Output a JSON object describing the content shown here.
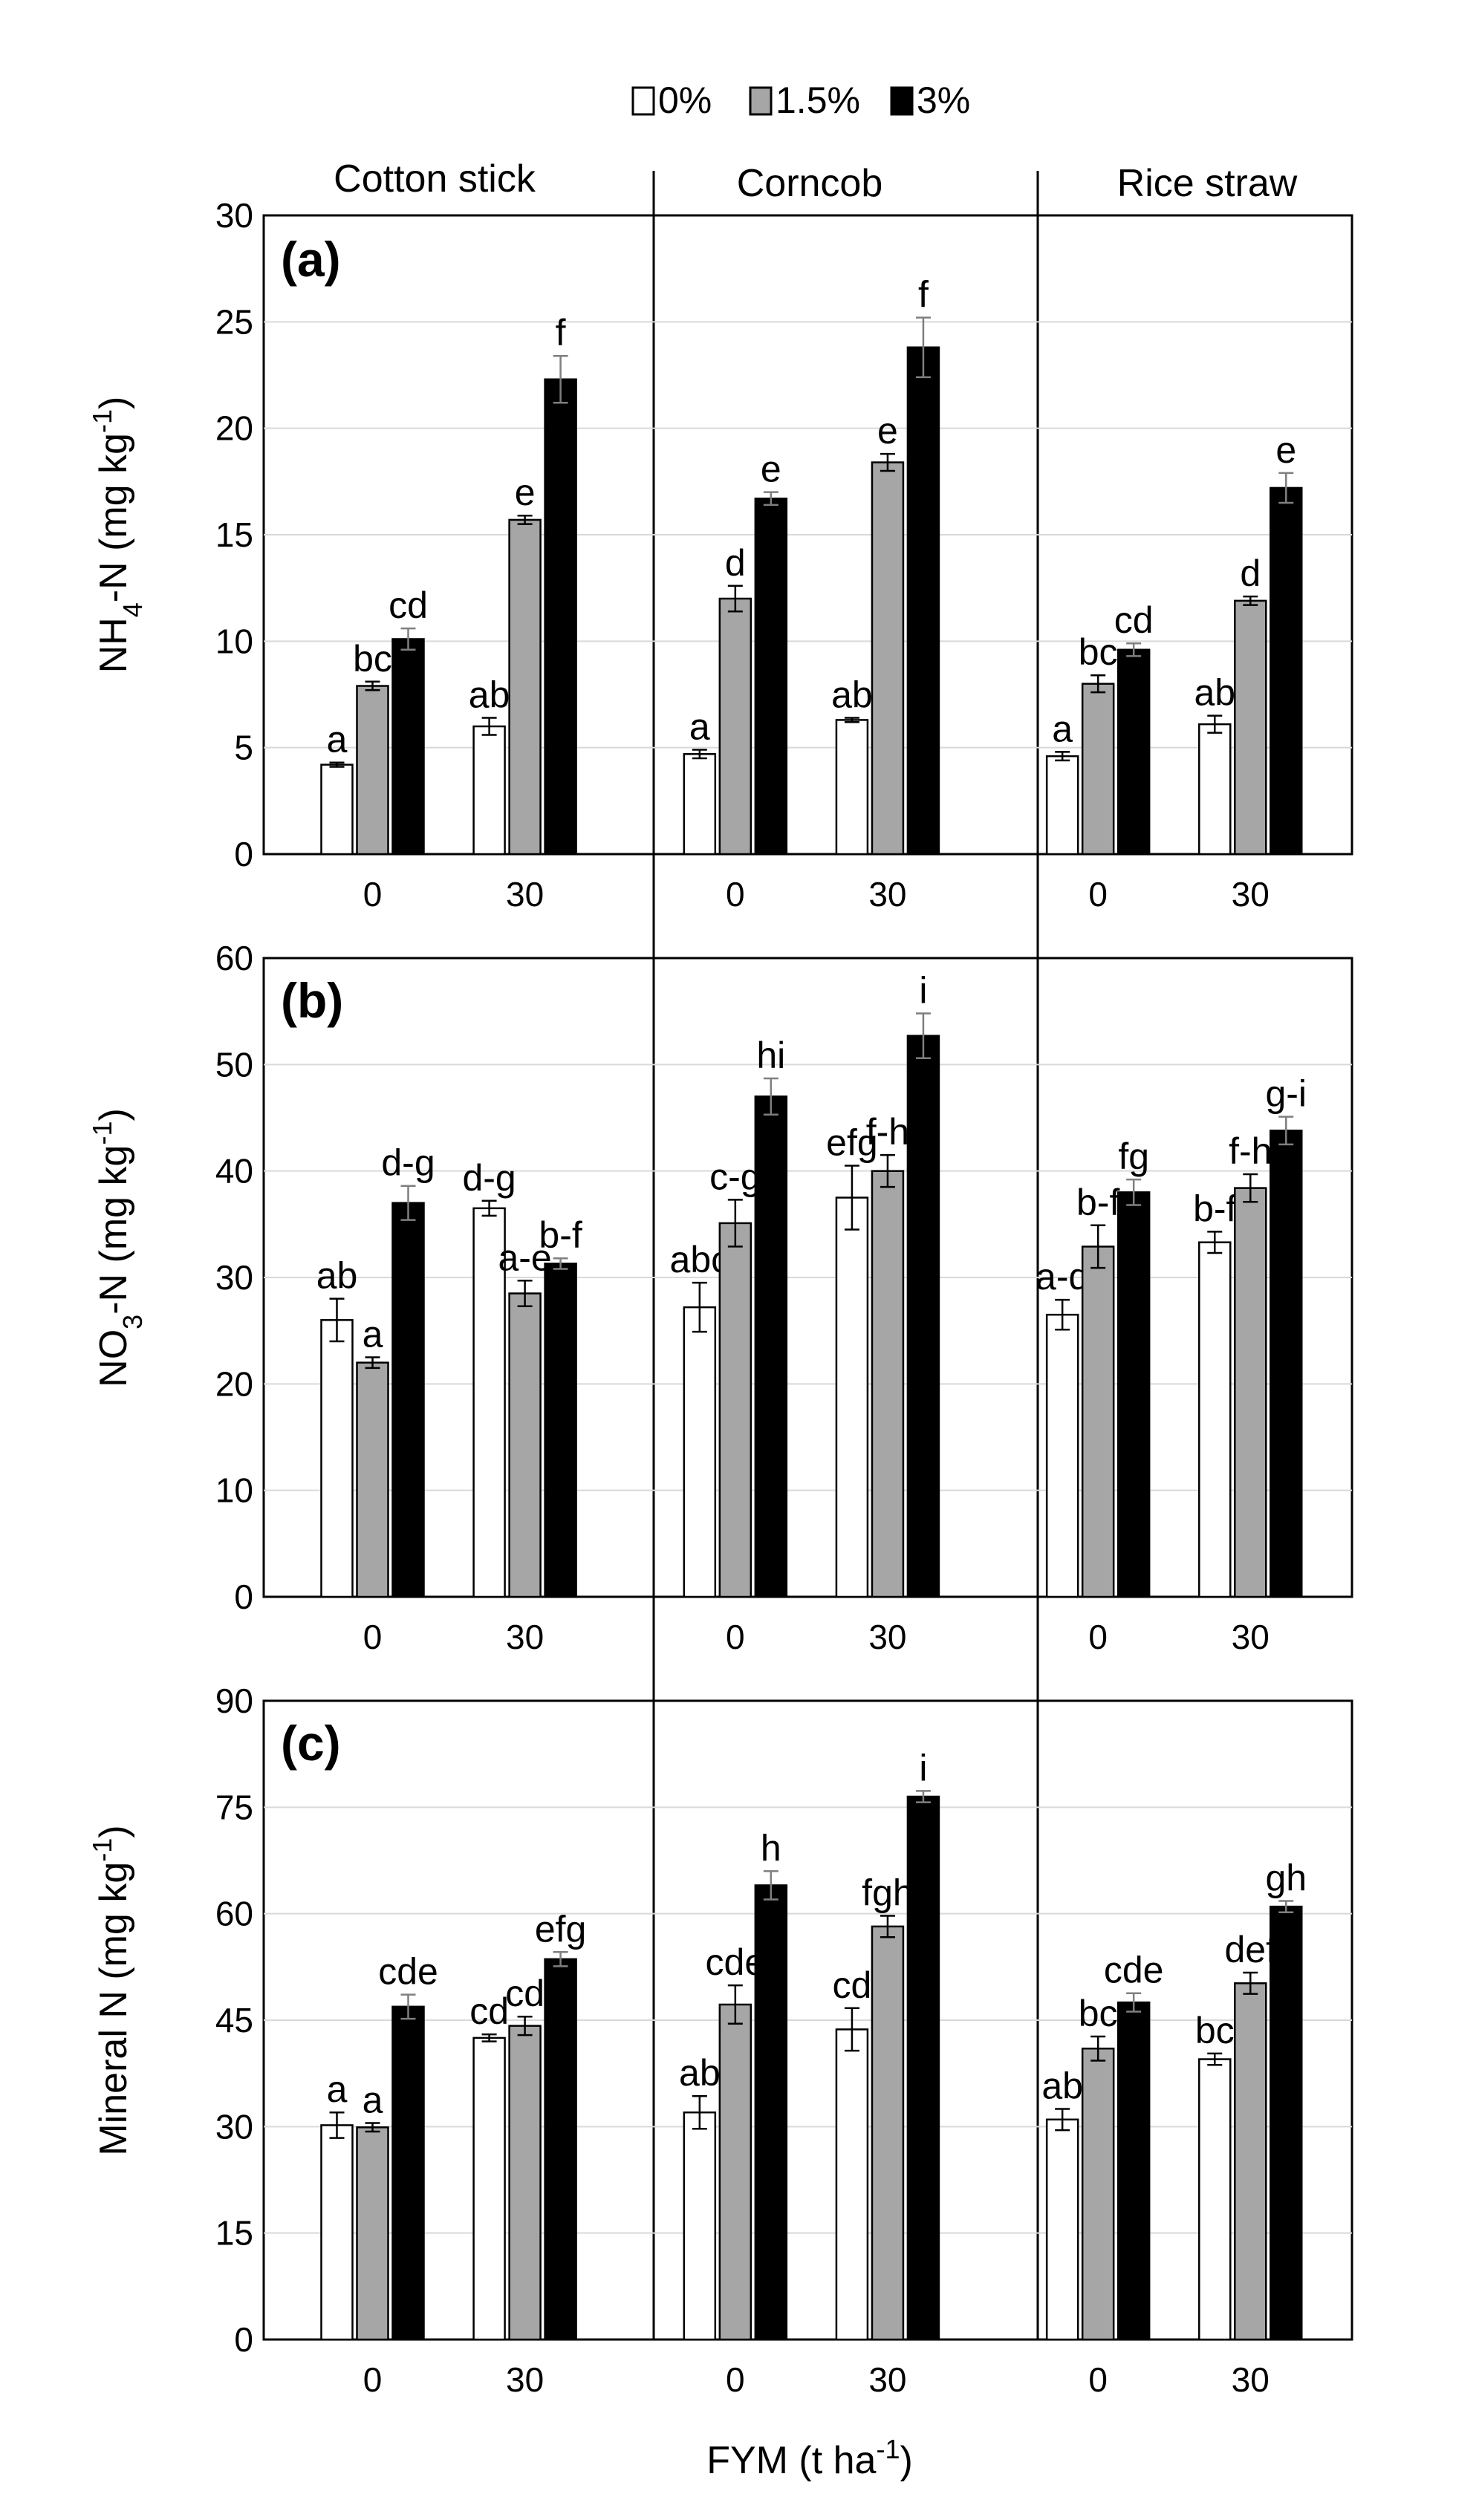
{
  "chart_data": {
    "type": "bar",
    "residue_columns": [
      "Cotton stick",
      "Corncob",
      "Rice straw"
    ],
    "fym_levels": [
      "0",
      "30"
    ],
    "xlabel": "FYM (t ha",
    "xlabel_sup": "-1",
    "xlabel_end": ")",
    "legend": [
      {
        "key": "s0",
        "label": "0%",
        "color": "#ffffff"
      },
      {
        "key": "s15",
        "label": "1.5%",
        "color": "#a6a6a6"
      },
      {
        "key": "s3",
        "label": "3%",
        "color": "#000000"
      }
    ],
    "panels": [
      {
        "id": "a",
        "letter": "(a)",
        "ylabel": {
          "pre": "NH",
          "sub": "4",
          "mid": "-N (mg kg",
          "sup": "-1",
          "post": ")"
        },
        "ylim": [
          0,
          30
        ],
        "yticks": [
          0,
          5,
          10,
          15,
          20,
          25,
          30
        ],
        "bars": [
          {
            "col": 0,
            "fym": 0,
            "s0": 4.2,
            "s15": 7.9,
            "s3": 10.1,
            "err": [
              0.1,
              0.2,
              0.5
            ],
            "labels": [
              "a",
              "bc",
              "cd"
            ]
          },
          {
            "col": 0,
            "fym": 1,
            "s0": 6.0,
            "s15": 15.7,
            "s3": 22.3,
            "err": [
              0.4,
              0.2,
              1.1
            ],
            "labels": [
              "ab",
              "e",
              "f"
            ]
          },
          {
            "col": 1,
            "fym": 0,
            "s0": 4.7,
            "s15": 12.0,
            "s3": 16.7,
            "err": [
              0.2,
              0.6,
              0.3
            ],
            "labels": [
              "a",
              "d",
              "e"
            ]
          },
          {
            "col": 1,
            "fym": 1,
            "s0": 6.3,
            "s15": 18.4,
            "s3": 23.8,
            "err": [
              0.1,
              0.4,
              1.4
            ],
            "labels": [
              "ab",
              "e",
              "f"
            ]
          },
          {
            "col": 2,
            "fym": 0,
            "s0": 4.6,
            "s15": 8.0,
            "s3": 9.6,
            "err": [
              0.2,
              0.4,
              0.3
            ],
            "labels": [
              "a",
              "bc",
              "cd"
            ]
          },
          {
            "col": 2,
            "fym": 1,
            "s0": 6.1,
            "s15": 11.9,
            "s3": 17.2,
            "err": [
              0.4,
              0.2,
              0.7
            ],
            "labels": [
              "ab",
              "d",
              "e"
            ]
          }
        ]
      },
      {
        "id": "b",
        "letter": "(b)",
        "ylabel": {
          "pre": "NO",
          "sub": "3",
          "mid": "-N (mg kg",
          "sup": "-1",
          "post": ")"
        },
        "ylim": [
          0,
          60
        ],
        "yticks": [
          0,
          10,
          20,
          30,
          40,
          50,
          60
        ],
        "bars": [
          {
            "col": 0,
            "fym": 0,
            "s0": 26.0,
            "s15": 22.0,
            "s3": 37.0,
            "err": [
              2.0,
              0.5,
              1.6
            ],
            "labels": [
              "ab",
              "a",
              "d-g"
            ]
          },
          {
            "col": 0,
            "fym": 1,
            "s0": 36.5,
            "s15": 28.5,
            "s3": 31.3,
            "err": [
              0.7,
              1.2,
              0.5
            ],
            "labels": [
              "d-g",
              "a-e",
              "b-f"
            ]
          },
          {
            "col": 1,
            "fym": 0,
            "s0": 27.2,
            "s15": 35.1,
            "s3": 47.0,
            "err": [
              2.3,
              2.2,
              1.7
            ],
            "labels": [
              "abc",
              "c-g",
              "hi"
            ]
          },
          {
            "col": 1,
            "fym": 1,
            "s0": 37.5,
            "s15": 40.0,
            "s3": 52.7,
            "err": [
              3.0,
              1.5,
              2.1
            ],
            "labels": [
              "efg",
              "f-h",
              "i"
            ]
          },
          {
            "col": 2,
            "fym": 0,
            "s0": 26.5,
            "s15": 32.9,
            "s3": 38.0,
            "err": [
              1.4,
              2.0,
              1.2
            ],
            "labels": [
              "a-d",
              "b-f",
              "fg"
            ]
          },
          {
            "col": 2,
            "fym": 1,
            "s0": 33.3,
            "s15": 38.4,
            "s3": 43.8,
            "err": [
              1.0,
              1.3,
              1.3
            ],
            "labels": [
              "b-f",
              "f-h",
              "g-i"
            ]
          }
        ]
      },
      {
        "id": "c",
        "letter": "(c)",
        "ylabel": {
          "pre": "Mineral N (mg kg",
          "sub": "",
          "mid": "",
          "sup": "-1",
          "post": ")"
        },
        "ylim": [
          0,
          90
        ],
        "yticks": [
          0,
          15,
          30,
          45,
          60,
          75,
          90
        ],
        "bars": [
          {
            "col": 0,
            "fym": 0,
            "s0": 30.2,
            "s15": 29.9,
            "s3": 46.9,
            "err": [
              1.8,
              0.6,
              1.7
            ],
            "labels": [
              "a",
              "a",
              "cde"
            ]
          },
          {
            "col": 0,
            "fym": 1,
            "s0": 42.5,
            "s15": 44.2,
            "s3": 53.6,
            "err": [
              0.5,
              1.3,
              1.0
            ],
            "labels": [
              "cd",
              "cd",
              "efg"
            ]
          },
          {
            "col": 1,
            "fym": 0,
            "s0": 32.0,
            "s15": 47.2,
            "s3": 64.0,
            "err": [
              2.3,
              2.7,
              2.0
            ],
            "labels": [
              "ab",
              "cde",
              "h"
            ]
          },
          {
            "col": 1,
            "fym": 1,
            "s0": 43.7,
            "s15": 58.2,
            "s3": 76.5,
            "err": [
              3.0,
              1.5,
              0.8
            ],
            "labels": [
              "cd",
              "fgh",
              "i"
            ]
          },
          {
            "col": 2,
            "fym": 0,
            "s0": 31.0,
            "s15": 41.0,
            "s3": 47.5,
            "err": [
              1.5,
              1.7,
              1.3
            ],
            "labels": [
              "ab",
              "bc",
              "cde"
            ]
          },
          {
            "col": 2,
            "fym": 1,
            "s0": 39.5,
            "s15": 50.2,
            "s3": 61.0,
            "err": [
              0.8,
              1.5,
              0.8
            ],
            "labels": [
              "bc",
              "def",
              "gh"
            ]
          }
        ]
      }
    ]
  }
}
